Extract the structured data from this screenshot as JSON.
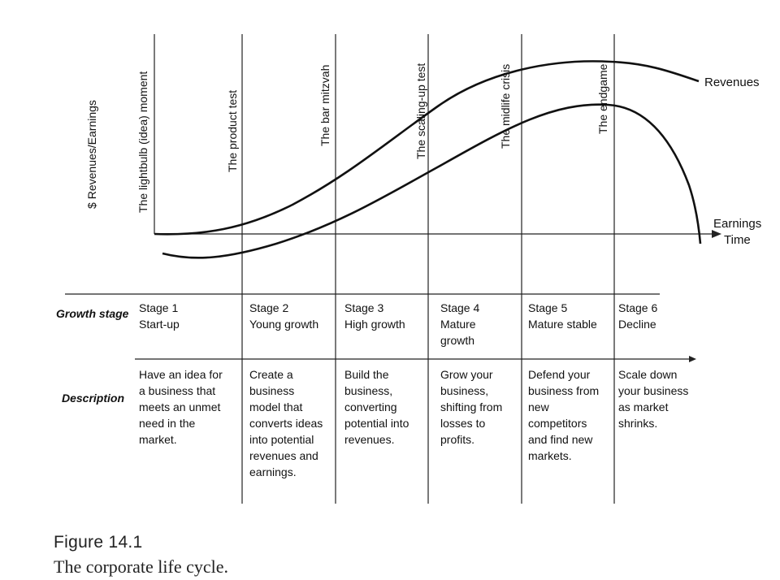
{
  "axes": {
    "y_label": "$ Revenues/Earnings",
    "x_label": "Time"
  },
  "curves": {
    "revenues_label": "Revenues",
    "earnings_label": "Earnings"
  },
  "milestones": [
    "The lightbulb (idea) moment",
    "The product test",
    "The bar mitzvah",
    "The scaling-up test",
    "The midlife crisis",
    "The endgame"
  ],
  "rows": {
    "growth_stage_label": "Growth stage",
    "description_label": "Description"
  },
  "stages": [
    {
      "title": "Stage 1",
      "name": [
        "Start-up"
      ],
      "description": [
        "Have an idea for",
        "a business that",
        "meets an unmet",
        "need in the",
        "market."
      ]
    },
    {
      "title": "Stage 2",
      "name": [
        "Young growth"
      ],
      "description": [
        "Create a",
        "business",
        "model that",
        "converts ideas",
        "into potential",
        "revenues and",
        "earnings."
      ]
    },
    {
      "title": "Stage 3",
      "name": [
        "High growth"
      ],
      "description": [
        "Build the",
        "business,",
        "converting",
        "potential into",
        "revenues."
      ]
    },
    {
      "title": "Stage 4",
      "name": [
        "Mature",
        "growth"
      ],
      "description": [
        "Grow your",
        "business,",
        "shifting from",
        "losses to",
        "profits."
      ]
    },
    {
      "title": "Stage 5",
      "name": [
        "Mature stable"
      ],
      "description": [
        "Defend your",
        "business from",
        "new",
        "competitors",
        "and find new",
        "markets."
      ]
    },
    {
      "title": "Stage 6",
      "name": [
        "Decline"
      ],
      "description": [
        "Scale down",
        "your business",
        "as market",
        "shrinks."
      ]
    }
  ],
  "caption": {
    "number": "Figure 14.1",
    "title": "The corporate life cycle."
  }
}
